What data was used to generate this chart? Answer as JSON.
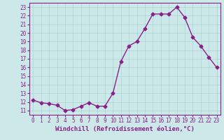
{
  "x": [
    0,
    1,
    2,
    3,
    4,
    5,
    6,
    7,
    8,
    9,
    10,
    11,
    12,
    13,
    14,
    15,
    16,
    17,
    18,
    19,
    20,
    21,
    22,
    23
  ],
  "y": [
    12.2,
    11.9,
    11.8,
    11.6,
    11.0,
    11.1,
    11.5,
    11.9,
    11.5,
    11.5,
    13.0,
    16.7,
    18.5,
    19.0,
    20.5,
    22.2,
    22.2,
    22.2,
    23.0,
    21.8,
    19.5,
    18.5,
    17.2,
    16.0
  ],
  "line_color": "#882288",
  "marker": "D",
  "markersize": 2.5,
  "linewidth": 1.0,
  "xlabel": "Windchill (Refroidissement éolien,°C)",
  "xlim": [
    -0.5,
    23.5
  ],
  "ylim": [
    10.5,
    23.5
  ],
  "yticks": [
    11,
    12,
    13,
    14,
    15,
    16,
    17,
    18,
    19,
    20,
    21,
    22,
    23
  ],
  "xticks": [
    0,
    1,
    2,
    3,
    4,
    5,
    6,
    7,
    8,
    9,
    10,
    11,
    12,
    13,
    14,
    15,
    16,
    17,
    18,
    19,
    20,
    21,
    22,
    23
  ],
  "bg_color": "#cce8e8",
  "grid_color": "#aad4d4",
  "tick_fontsize": 5.5,
  "xlabel_fontsize": 6.5,
  "axis_bg": "#cce8e8"
}
